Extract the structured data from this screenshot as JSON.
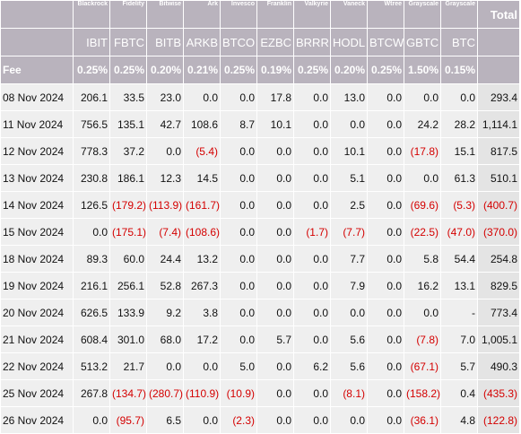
{
  "columns": [
    {
      "issuer": "Blackrock",
      "ticker": "IBIT",
      "fee": "0.25%"
    },
    {
      "issuer": "Fidelity",
      "ticker": "FBTC",
      "fee": "0.25%"
    },
    {
      "issuer": "Bitwise",
      "ticker": "BITB",
      "fee": "0.20%"
    },
    {
      "issuer": "Ark",
      "ticker": "ARKB",
      "fee": "0.21%"
    },
    {
      "issuer": "Invesco",
      "ticker": "BTCO",
      "fee": "0.25%"
    },
    {
      "issuer": "Franklin",
      "ticker": "EZBC",
      "fee": "0.19%"
    },
    {
      "issuer": "Valkyrie",
      "ticker": "BRRR",
      "fee": "0.25%"
    },
    {
      "issuer": "Vaneck",
      "ticker": "HODL",
      "fee": "0.20%"
    },
    {
      "issuer": "Wtree",
      "ticker": "BTCW",
      "fee": "0.25%"
    },
    {
      "issuer": "Grayscale",
      "ticker": "GBTC",
      "fee": "1.50%"
    },
    {
      "issuer": "Grayscale",
      "ticker": "BTC",
      "fee": "0.15%"
    }
  ],
  "total_label": "Total",
  "fee_label": "Fee",
  "rows": [
    {
      "date": "08 Nov 2024",
      "values": [
        "206.1",
        "33.5",
        "23.0",
        "0.0",
        "0.0",
        "17.8",
        "0.0",
        "13.0",
        "0.0",
        "0.0",
        "0.0"
      ],
      "total": "293.4"
    },
    {
      "date": "11 Nov 2024",
      "values": [
        "756.5",
        "135.1",
        "42.7",
        "108.6",
        "8.7",
        "10.1",
        "0.0",
        "0.0",
        "0.0",
        "24.2",
        "28.2"
      ],
      "total": "1,114.1"
    },
    {
      "date": "12 Nov 2024",
      "values": [
        "778.3",
        "37.2",
        "0.0",
        "(5.4)",
        "0.0",
        "0.0",
        "0.0",
        "10.1",
        "0.0",
        "(17.8)",
        "15.1"
      ],
      "total": "817.5"
    },
    {
      "date": "13 Nov 2024",
      "values": [
        "230.8",
        "186.1",
        "12.3",
        "14.5",
        "0.0",
        "0.0",
        "0.0",
        "5.1",
        "0.0",
        "0.0",
        "61.3"
      ],
      "total": "510.1"
    },
    {
      "date": "14 Nov 2024",
      "values": [
        "126.5",
        "(179.2)",
        "(113.9)",
        "(161.7)",
        "0.0",
        "0.0",
        "0.0",
        "2.5",
        "0.0",
        "(69.6)",
        "(5.3)"
      ],
      "total": "(400.7)"
    },
    {
      "date": "15 Nov 2024",
      "values": [
        "0.0",
        "(175.1)",
        "(7.4)",
        "(108.6)",
        "0.0",
        "0.0",
        "(1.7)",
        "(7.7)",
        "0.0",
        "(22.5)",
        "(47.0)"
      ],
      "total": "(370.0)"
    },
    {
      "date": "18 Nov 2024",
      "values": [
        "89.3",
        "60.0",
        "24.4",
        "13.2",
        "0.0",
        "0.0",
        "0.0",
        "7.7",
        "0.0",
        "5.8",
        "54.4"
      ],
      "total": "254.8"
    },
    {
      "date": "19 Nov 2024",
      "values": [
        "216.1",
        "256.1",
        "52.8",
        "267.3",
        "0.0",
        "0.0",
        "0.0",
        "7.9",
        "0.0",
        "16.2",
        "13.1"
      ],
      "total": "829.5"
    },
    {
      "date": "20 Nov 2024",
      "values": [
        "626.5",
        "133.9",
        "9.2",
        "3.8",
        "0.0",
        "0.0",
        "0.0",
        "0.0",
        "0.0",
        "0.0",
        "-"
      ],
      "total": "773.4"
    },
    {
      "date": "21 Nov 2024",
      "values": [
        "608.4",
        "301.0",
        "68.0",
        "17.2",
        "0.0",
        "5.7",
        "0.0",
        "5.6",
        "0.0",
        "(7.8)",
        "7.0"
      ],
      "total": "1,005.1"
    },
    {
      "date": "22 Nov 2024",
      "values": [
        "513.2",
        "21.7",
        "0.0",
        "0.0",
        "5.0",
        "0.0",
        "6.2",
        "5.6",
        "0.0",
        "(67.1)",
        "5.7"
      ],
      "total": "490.3"
    },
    {
      "date": "25 Nov 2024",
      "values": [
        "267.8",
        "(134.7)",
        "(280.7)",
        "(110.9)",
        "(10.9)",
        "0.0",
        "0.0",
        "(8.1)",
        "0.0",
        "(158.2)",
        "0.4"
      ],
      "total": "(435.3)"
    },
    {
      "date": "26 Nov 2024",
      "values": [
        "0.0",
        "(95.7)",
        "6.5",
        "0.0",
        "(2.3)",
        "0.0",
        "0.0",
        "0.0",
        "0.0",
        "(36.1)",
        "4.8"
      ],
      "total": "(122.8)"
    }
  ],
  "colors": {
    "header_bg": "#b9b3bd",
    "cell_bg": "#efefef",
    "negative": "#d40000"
  }
}
